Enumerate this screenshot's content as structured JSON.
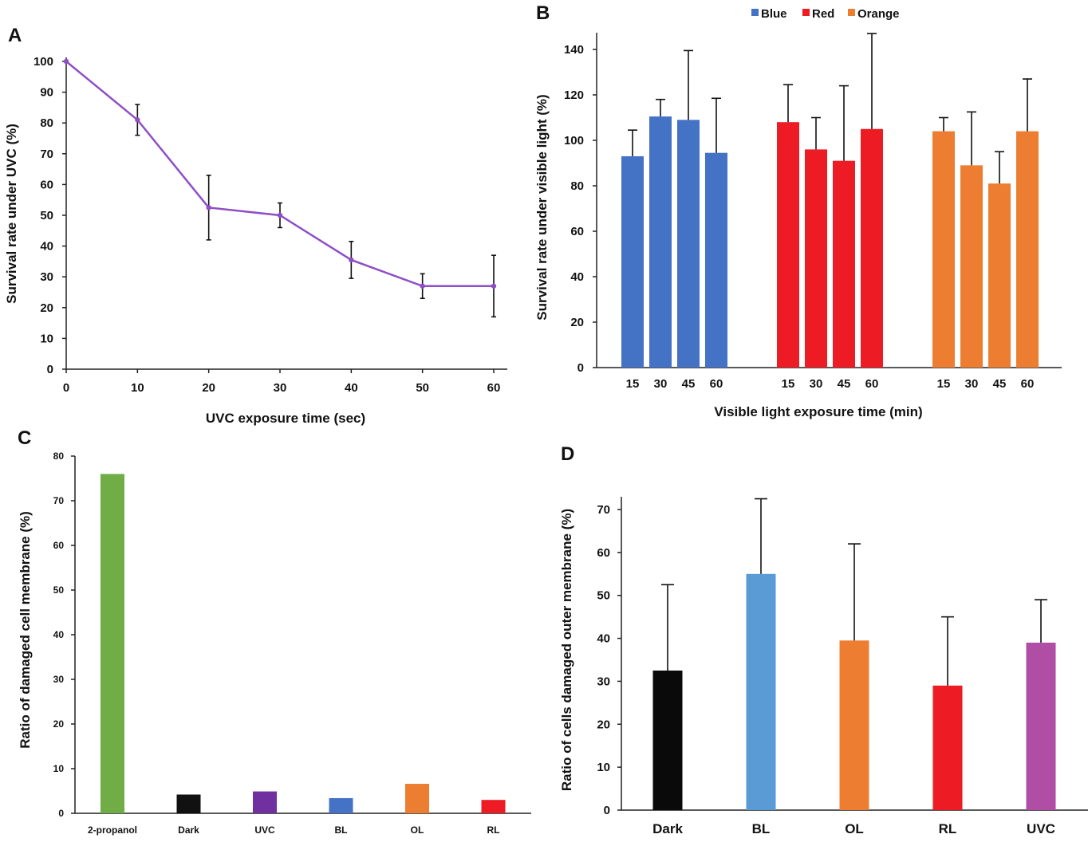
{
  "chart_data": [
    {
      "panel": "A",
      "type": "line",
      "x": [
        0,
        10,
        20,
        30,
        40,
        50,
        60
      ],
      "values": [
        100,
        81,
        52.5,
        50,
        35.5,
        27,
        27
      ],
      "errors": [
        0,
        5,
        10.5,
        4,
        6,
        4,
        10
      ],
      "xlabel": "UVC exposure time (sec)",
      "ylabel": "Survival rate under UVC (%)",
      "xlim": [
        0,
        60
      ],
      "ylim": [
        0,
        100
      ],
      "xticks": [
        0,
        10,
        20,
        30,
        40,
        50,
        60
      ],
      "yticks": [
        0,
        10,
        20,
        30,
        40,
        50,
        60,
        70,
        80,
        90,
        100
      ],
      "color": "#8e4ec6",
      "grid": false
    },
    {
      "panel": "B",
      "type": "bar",
      "xlabel": "Visible light exposure time (min)",
      "ylabel": "Survival rate under visible light (%)",
      "ylim": [
        0,
        147
      ],
      "yticks": [
        0,
        20,
        40,
        60,
        80,
        100,
        120,
        140
      ],
      "legend_position": "top",
      "grid": false,
      "groups": [
        {
          "name": "Blue",
          "color": "#4472c4",
          "categories": [
            "15",
            "30",
            "45",
            "60"
          ],
          "values": [
            93,
            110.5,
            109,
            94.5
          ],
          "errors": [
            11.5,
            7.5,
            30.5,
            24
          ]
        },
        {
          "name": "Red",
          "color": "#ed1c24",
          "categories": [
            "15",
            "30",
            "45",
            "60"
          ],
          "values": [
            108,
            96,
            91,
            105
          ],
          "errors": [
            16.5,
            14,
            33,
            42
          ]
        },
        {
          "name": "Orange",
          "color": "#ed7d31",
          "categories": [
            "15",
            "30",
            "45",
            "60"
          ],
          "values": [
            104,
            89,
            81,
            104
          ],
          "errors": [
            6,
            23.5,
            14,
            23
          ]
        }
      ]
    },
    {
      "panel": "C",
      "type": "bar",
      "categories": [
        "2-propanol",
        "Dark",
        "UVC",
        "BL",
        "OL",
        "RL"
      ],
      "values": [
        76,
        4.2,
        4.9,
        3.4,
        6.6,
        3
      ],
      "colors": [
        "#70ad47",
        "#111111",
        "#7030a0",
        "#4472c4",
        "#ed7d31",
        "#ed1c24"
      ],
      "xlabel": "",
      "ylabel": "Ratio of damaged cell membrane (%)",
      "ylim": [
        0,
        80
      ],
      "yticks": [
        0,
        10,
        20,
        30,
        40,
        50,
        60,
        70,
        80
      ],
      "grid": false
    },
    {
      "panel": "D",
      "type": "bar",
      "categories": [
        "Dark",
        "BL",
        "OL",
        "RL",
        "UVC"
      ],
      "values": [
        32.5,
        55,
        39.5,
        29,
        39
      ],
      "errors": [
        20,
        17.5,
        22.5,
        16,
        10
      ],
      "colors": [
        "#0a0a0a",
        "#5b9bd5",
        "#ed7d31",
        "#ed1c24",
        "#b04ea6"
      ],
      "xlabel": "",
      "ylabel": "Ratio of cells damaged outer membrane (%)",
      "ylim": [
        0,
        73
      ],
      "yticks": [
        0,
        10,
        20,
        30,
        40,
        50,
        60,
        70
      ],
      "grid": false
    }
  ]
}
